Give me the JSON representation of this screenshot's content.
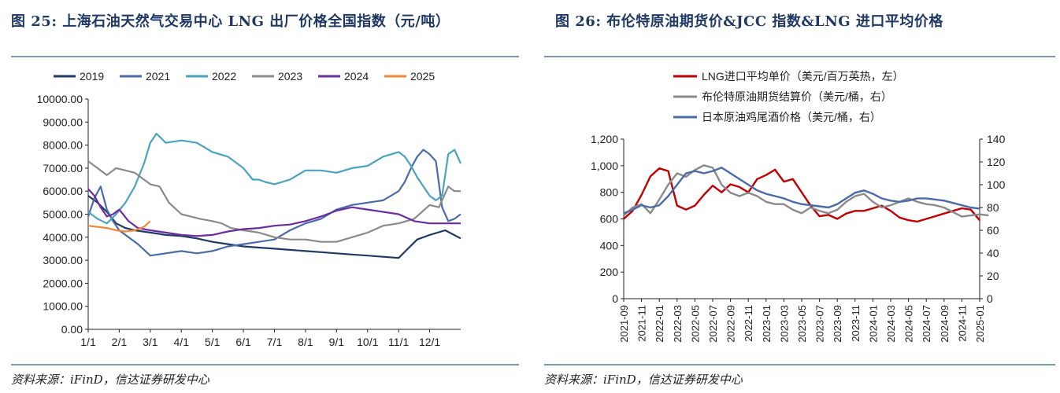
{
  "left": {
    "title": "图 25: 上海石油天然气交易中心 LNG 出厂价格全国指数（元/吨）",
    "source": "资料来源：iFinD，信达证券研发中心",
    "chart_data": {
      "type": "line",
      "title": "",
      "xlabel": "",
      "ylabel": "",
      "x_ticks": [
        "1/1",
        "2/1",
        "3/1",
        "4/1",
        "5/1",
        "6/1",
        "7/1",
        "8/1",
        "9/1",
        "10/1",
        "11/1",
        "12/1"
      ],
      "x_range": [
        0,
        12
      ],
      "ylim": [
        0,
        10000
      ],
      "y_ticks": [
        "0.00",
        "1000.00",
        "2000.00",
        "3000.00",
        "4000.00",
        "5000.00",
        "6000.00",
        "7000.00",
        "8000.00",
        "9000.00",
        "10000.00"
      ],
      "grid": false,
      "legend_position": "top",
      "series": [
        {
          "name": "2019",
          "color": "#1f3864",
          "x": [
            0,
            0.3,
            0.6,
            0.9,
            1.2,
            1.5,
            2,
            2.5,
            3,
            3.5,
            4,
            4.5,
            5,
            5.5,
            6,
            6.5,
            7,
            7.5,
            8,
            8.5,
            9,
            9.5,
            10,
            10.3,
            10.6,
            11,
            11.5,
            12
          ],
          "y": [
            5800,
            5500,
            5100,
            4600,
            4400,
            4300,
            4200,
            4100,
            4050,
            3950,
            3800,
            3700,
            3600,
            3550,
            3500,
            3450,
            3400,
            3350,
            3300,
            3250,
            3200,
            3150,
            3100,
            3500,
            3900,
            4100,
            4300,
            3950
          ]
        },
        {
          "name": "2021",
          "color": "#4a6aa8",
          "x": [
            0,
            0.2,
            0.4,
            0.6,
            0.8,
            1,
            1.3,
            1.6,
            2,
            2.5,
            3,
            3.5,
            4,
            4.5,
            5,
            5.5,
            6,
            6.5,
            7,
            7.5,
            8,
            8.5,
            9,
            9.5,
            10,
            10.2,
            10.4,
            10.6,
            10.8,
            11,
            11.2,
            11.4,
            11.6,
            11.8,
            12
          ],
          "y": [
            4900,
            5700,
            6200,
            5200,
            4700,
            4300,
            4000,
            3700,
            3200,
            3300,
            3400,
            3300,
            3400,
            3600,
            3700,
            3800,
            3900,
            4300,
            4600,
            4800,
            5200,
            5400,
            5500,
            5600,
            6000,
            6400,
            7000,
            7500,
            7800,
            7600,
            7300,
            5300,
            4700,
            4800,
            5000
          ]
        },
        {
          "name": "2022",
          "color": "#4aa3bf",
          "x": [
            0,
            0.3,
            0.6,
            0.9,
            1.2,
            1.5,
            1.8,
            2,
            2.2,
            2.5,
            3,
            3.5,
            4,
            4.5,
            5,
            5.3,
            5.5,
            5.7,
            6,
            6.5,
            7,
            7.5,
            8,
            8.5,
            9,
            9.5,
            10,
            10.2,
            10.4,
            10.6,
            10.8,
            11,
            11.2,
            11.4,
            11.6,
            11.8,
            12
          ],
          "y": [
            5100,
            4800,
            4600,
            5000,
            5500,
            6200,
            7200,
            8100,
            8500,
            8100,
            8200,
            8100,
            7700,
            7500,
            7000,
            6500,
            6500,
            6400,
            6300,
            6500,
            6900,
            6900,
            6800,
            7000,
            7100,
            7500,
            7700,
            7500,
            7100,
            6600,
            6200,
            5800,
            5600,
            5800,
            7600,
            7800,
            7200
          ]
        },
        {
          "name": "2023",
          "color": "#8a8a8a",
          "x": [
            0,
            0.3,
            0.6,
            0.9,
            1.2,
            1.5,
            1.8,
            2,
            2.3,
            2.6,
            3,
            3.3,
            3.6,
            4,
            4.3,
            4.6,
            5,
            5.5,
            6,
            6.5,
            7,
            7.5,
            8,
            8.5,
            9,
            9.5,
            10,
            10.5,
            11,
            11.3,
            11.6,
            11.8,
            12
          ],
          "y": [
            7300,
            7000,
            6700,
            7000,
            6900,
            6800,
            6500,
            6300,
            6200,
            5500,
            5000,
            4900,
            4800,
            4700,
            4600,
            4400,
            4300,
            4200,
            4000,
            3900,
            3900,
            3800,
            3800,
            4000,
            4200,
            4500,
            4600,
            4800,
            5400,
            5300,
            6200,
            6000,
            6000
          ]
        },
        {
          "name": "2024",
          "color": "#6a2c9e",
          "x": [
            0,
            0.2,
            0.4,
            0.6,
            0.8,
            1,
            1.3,
            1.6,
            2,
            2.5,
            3,
            3.5,
            4,
            4.5,
            5,
            5.5,
            6,
            6.5,
            7,
            7.5,
            8,
            8.5,
            9,
            9.5,
            10,
            10.5,
            11,
            11.5,
            12
          ],
          "y": [
            6100,
            5800,
            5300,
            4900,
            5000,
            5200,
            4700,
            4400,
            4300,
            4200,
            4100,
            4050,
            4100,
            4250,
            4350,
            4400,
            4500,
            4550,
            4700,
            4900,
            5150,
            5300,
            5200,
            5100,
            5000,
            4700,
            4600,
            4600,
            4600
          ]
        },
        {
          "name": "2025",
          "color": "#f0883a",
          "x": [
            0,
            0.3,
            0.6,
            0.9,
            1.2,
            1.5,
            1.8,
            2
          ],
          "y": [
            4500,
            4450,
            4400,
            4300,
            4250,
            4300,
            4450,
            4700
          ]
        }
      ]
    }
  },
  "right": {
    "title": "图 26: 布伦特原油期货价&JCC 指数&LNG 进口平均价格",
    "source": "资料来源：iFinD，信达证券研发中心",
    "chart_data": {
      "type": "line",
      "title": "",
      "xlabel": "",
      "ylabel": "",
      "x_ticks": [
        "2021-09",
        "2021-11",
        "2022-01",
        "2022-03",
        "2022-05",
        "2022-07",
        "2022-09",
        "2022-11",
        "2023-01",
        "2023-03",
        "2023-05",
        "2023-07",
        "2023-09",
        "2023-11",
        "2024-01",
        "2024-03",
        "2024-05",
        "2024-07",
        "2024-09",
        "2024-11",
        "2025-01"
      ],
      "y_left": {
        "lim": [
          0,
          1200
        ],
        "ticks": [
          "0",
          "200",
          "400",
          "600",
          "800",
          "1,000",
          "1,200"
        ]
      },
      "y_right": {
        "lim": [
          0,
          140
        ],
        "ticks": [
          "0",
          "20",
          "40",
          "60",
          "80",
          "100",
          "120",
          "140"
        ]
      },
      "grid": false,
      "legend_position": "top",
      "series": [
        {
          "name": "LNG进口平均单价（美元/百万英热，左）",
          "axis": "left",
          "color": "#c00000",
          "x": [
            0,
            0.5,
            1,
            1.5,
            2,
            2.5,
            3,
            3.5,
            4,
            4.5,
            5,
            5.5,
            6,
            6.5,
            7,
            7.5,
            8,
            8.5,
            9,
            9.5,
            10,
            10.5,
            11,
            11.5,
            12,
            12.5,
            13,
            13.5,
            14,
            14.5,
            15,
            15.5,
            16,
            16.5,
            17,
            17.5,
            18,
            18.5,
            19,
            19.5,
            20
          ],
          "y": [
            600,
            660,
            780,
            920,
            980,
            960,
            700,
            670,
            700,
            780,
            850,
            800,
            860,
            840,
            800,
            900,
            930,
            970,
            880,
            900,
            800,
            700,
            620,
            630,
            600,
            640,
            660,
            660,
            680,
            700,
            660,
            610,
            590,
            580,
            600,
            620,
            640,
            660,
            680,
            670,
            590
          ]
        },
        {
          "name": "布伦特原油期货结算价（美元/桶，右）",
          "axis": "right",
          "color": "#8a8a8a",
          "x": [
            0,
            0.5,
            1,
            1.5,
            2,
            2.5,
            3,
            3.5,
            4,
            4.5,
            5,
            5.5,
            6,
            6.5,
            7,
            7.5,
            8,
            8.5,
            9,
            9.5,
            10,
            10.5,
            11,
            11.5,
            12,
            12.5,
            13,
            13.5,
            14,
            14.5,
            15,
            15.5,
            16,
            16.5,
            17,
            17.5,
            18,
            18.5,
            19,
            19.5,
            20,
            20.5
          ],
          "y": [
            73,
            80,
            83,
            75,
            87,
            100,
            110,
            107,
            113,
            117,
            115,
            100,
            93,
            90,
            93,
            90,
            85,
            83,
            83,
            78,
            75,
            80,
            77,
            75,
            78,
            85,
            90,
            92,
            85,
            80,
            82,
            85,
            88,
            85,
            83,
            82,
            80,
            76,
            72,
            73,
            74,
            73
          ]
        },
        {
          "name": "日本原油鸡尾酒价格（美元/桶，右）",
          "axis": "right",
          "color": "#4a6aa8",
          "x": [
            0,
            0.5,
            1,
            1.5,
            2,
            2.5,
            3,
            3.5,
            4,
            4.5,
            5,
            5.5,
            6,
            6.5,
            7,
            7.5,
            8,
            8.5,
            9,
            9.5,
            10,
            10.5,
            11,
            11.5,
            12,
            12.5,
            13,
            13.5,
            14,
            14.5,
            15,
            15.5,
            16,
            16.5,
            17,
            17.5,
            18,
            18.5,
            19,
            19.5,
            20
          ],
          "y": [
            75,
            78,
            82,
            80,
            82,
            90,
            100,
            110,
            112,
            110,
            112,
            115,
            110,
            105,
            100,
            95,
            92,
            90,
            88,
            85,
            83,
            82,
            81,
            80,
            83,
            88,
            93,
            95,
            92,
            88,
            86,
            85,
            86,
            88,
            88,
            87,
            86,
            84,
            82,
            80,
            79
          ]
        }
      ]
    }
  }
}
